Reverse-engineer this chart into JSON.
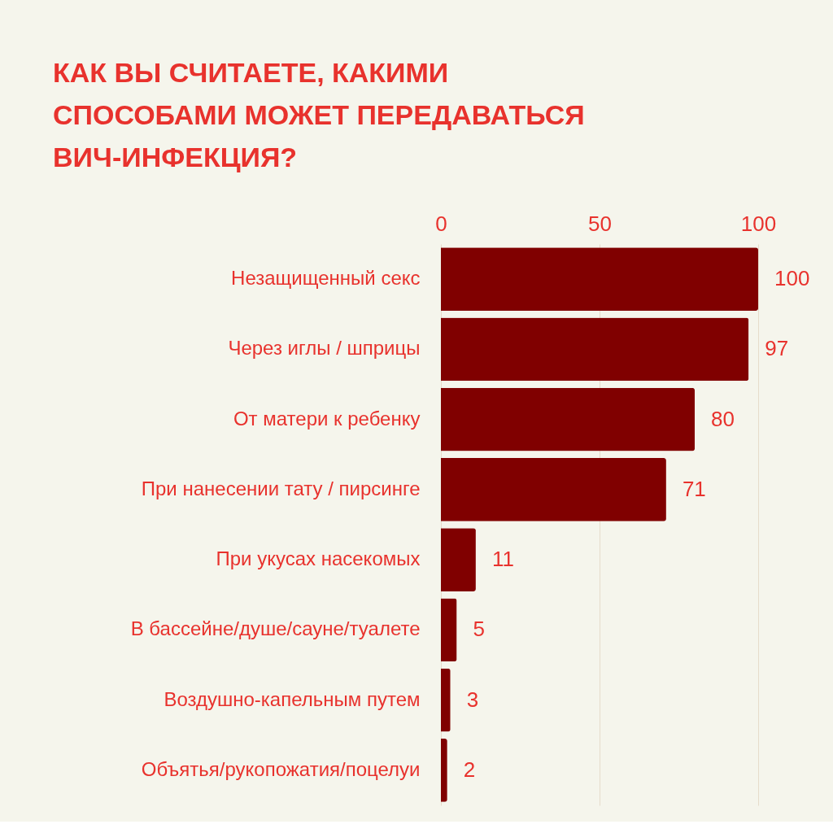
{
  "chart_data": {
    "type": "bar",
    "orientation": "horizontal",
    "title": "КАК ВЫ СЧИТАЕТЕ, КАКИМИ СПОСОБАМИ МОЖЕТ ПЕРЕДАВАТЬСЯ ВИЧ-ИНФЕКЦИЯ?",
    "categories": [
      "Незащищенный секс",
      "Через иглы / шприцы",
      "От матери к ребенку",
      "При нанесении тату / пирсинге",
      "При укусах насекомых",
      "В бассейне/душе/сауне/туалете",
      "Воздушно-капельным путем",
      "Объятья/рукопожатия/поцелуи"
    ],
    "values": [
      100,
      97,
      80,
      71,
      11,
      5,
      3,
      2
    ],
    "color": "#800000",
    "xlim": [
      0,
      100
    ],
    "xticks": [
      0,
      50,
      100
    ],
    "grid": "x",
    "data_labels": true
  }
}
